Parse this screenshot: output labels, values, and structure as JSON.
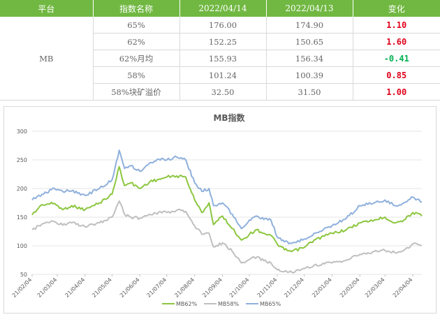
{
  "table": {
    "headers": [
      "平台",
      "指数名称",
      "2022/04/14",
      "2022/04/13",
      "变化"
    ],
    "platform": "MB",
    "rows": [
      {
        "name": "65%",
        "d1": "176.00",
        "d2": "174.90",
        "change": "1.10",
        "dir": "up"
      },
      {
        "name": "62%",
        "d1": "152.25",
        "d2": "150.65",
        "change": "1.60",
        "dir": "up"
      },
      {
        "name": "62%月均",
        "d1": "155.93",
        "d2": "156.34",
        "change": "-0.41",
        "dir": "down"
      },
      {
        "name": "58%",
        "d1": "101.24",
        "d2": "100.39",
        "change": "0.85",
        "dir": "up"
      },
      {
        "name": "58%块矿溢价",
        "d1": "32.50",
        "d2": "31.50",
        "change": "1.00",
        "dir": "up"
      }
    ],
    "colors": {
      "header_bg": "#71b842",
      "up": "#e0001a",
      "down": "#00b050"
    }
  },
  "chart_data": {
    "type": "line",
    "title": "MB指数",
    "ylim": [
      50,
      300
    ],
    "yticks": [
      50,
      100,
      150,
      200,
      250,
      300
    ],
    "xticks": [
      "21/02/04",
      "21/03/04",
      "21/04/04",
      "21/05/04",
      "21/06/04",
      "21/07/04",
      "21/08/04",
      "21/09/04",
      "21/10/04",
      "21/11/04",
      "21/12/04",
      "22/01/04",
      "22/02/04",
      "22/03/04",
      "22/04/04"
    ],
    "x_start": "2021-02-04",
    "x_end": "2022-04-14",
    "grid": true,
    "legend_position": "bottom",
    "series": [
      {
        "name": "MB62%",
        "color": "#8cc63f",
        "points": [
          [
            "2021-02-04",
            154
          ],
          [
            "2021-02-15",
            172
          ],
          [
            "2021-03-01",
            174
          ],
          [
            "2021-03-10",
            163
          ],
          [
            "2021-03-20",
            170
          ],
          [
            "2021-04-04",
            163
          ],
          [
            "2021-04-20",
            175
          ],
          [
            "2021-05-04",
            190
          ],
          [
            "2021-05-12",
            238
          ],
          [
            "2021-05-18",
            205
          ],
          [
            "2021-05-25",
            210
          ],
          [
            "2021-06-04",
            200
          ],
          [
            "2021-06-15",
            212
          ],
          [
            "2021-06-30",
            218
          ],
          [
            "2021-07-04",
            220
          ],
          [
            "2021-07-15",
            222
          ],
          [
            "2021-07-25",
            220
          ],
          [
            "2021-08-04",
            180
          ],
          [
            "2021-08-12",
            158
          ],
          [
            "2021-08-20",
            175
          ],
          [
            "2021-08-25",
            137
          ],
          [
            "2021-09-04",
            152
          ],
          [
            "2021-09-15",
            130
          ],
          [
            "2021-09-25",
            110
          ],
          [
            "2021-10-04",
            120
          ],
          [
            "2021-10-12",
            128
          ],
          [
            "2021-10-20",
            122
          ],
          [
            "2021-10-28",
            118
          ],
          [
            "2021-11-04",
            103
          ],
          [
            "2021-11-12",
            93
          ],
          [
            "2021-11-20",
            90
          ],
          [
            "2021-12-04",
            97
          ],
          [
            "2021-12-15",
            110
          ],
          [
            "2022-01-04",
            122
          ],
          [
            "2022-01-20",
            128
          ],
          [
            "2022-02-04",
            140
          ],
          [
            "2022-02-20",
            145
          ],
          [
            "2022-03-04",
            150
          ],
          [
            "2022-03-15",
            140
          ],
          [
            "2022-03-25",
            145
          ],
          [
            "2022-04-04",
            158
          ],
          [
            "2022-04-14",
            152
          ]
        ]
      },
      {
        "name": "MB58%",
        "color": "#bfbfbf",
        "points": [
          [
            "2021-02-04",
            128
          ],
          [
            "2021-02-15",
            138
          ],
          [
            "2021-03-01",
            142
          ],
          [
            "2021-03-10",
            136
          ],
          [
            "2021-03-20",
            140
          ],
          [
            "2021-04-04",
            133
          ],
          [
            "2021-04-20",
            140
          ],
          [
            "2021-05-04",
            150
          ],
          [
            "2021-05-12",
            178
          ],
          [
            "2021-05-18",
            155
          ],
          [
            "2021-05-25",
            150
          ],
          [
            "2021-06-04",
            148
          ],
          [
            "2021-06-15",
            155
          ],
          [
            "2021-06-30",
            160
          ],
          [
            "2021-07-04",
            158
          ],
          [
            "2021-07-15",
            162
          ],
          [
            "2021-07-25",
            160
          ],
          [
            "2021-08-04",
            135
          ],
          [
            "2021-08-12",
            120
          ],
          [
            "2021-08-20",
            122
          ],
          [
            "2021-08-25",
            98
          ],
          [
            "2021-09-04",
            105
          ],
          [
            "2021-09-15",
            90
          ],
          [
            "2021-09-25",
            70
          ],
          [
            "2021-10-04",
            76
          ],
          [
            "2021-10-12",
            80
          ],
          [
            "2021-10-20",
            74
          ],
          [
            "2021-10-28",
            70
          ],
          [
            "2021-11-04",
            58
          ],
          [
            "2021-11-12",
            55
          ],
          [
            "2021-11-20",
            54
          ],
          [
            "2021-12-04",
            60
          ],
          [
            "2021-12-15",
            66
          ],
          [
            "2022-01-04",
            70
          ],
          [
            "2022-01-20",
            75
          ],
          [
            "2022-02-04",
            85
          ],
          [
            "2022-02-20",
            90
          ],
          [
            "2022-03-04",
            92
          ],
          [
            "2022-03-15",
            88
          ],
          [
            "2022-03-25",
            92
          ],
          [
            "2022-04-04",
            103
          ],
          [
            "2022-04-14",
            101
          ]
        ]
      },
      {
        "name": "MB65%",
        "color": "#8fb0dc",
        "points": [
          [
            "2021-02-04",
            180
          ],
          [
            "2021-02-15",
            190
          ],
          [
            "2021-03-01",
            200
          ],
          [
            "2021-03-10",
            195
          ],
          [
            "2021-03-20",
            196
          ],
          [
            "2021-04-04",
            188
          ],
          [
            "2021-04-20",
            200
          ],
          [
            "2021-05-04",
            215
          ],
          [
            "2021-05-12",
            267
          ],
          [
            "2021-05-18",
            235
          ],
          [
            "2021-05-25",
            240
          ],
          [
            "2021-06-04",
            230
          ],
          [
            "2021-06-15",
            245
          ],
          [
            "2021-06-30",
            252
          ],
          [
            "2021-07-04",
            250
          ],
          [
            "2021-07-15",
            255
          ],
          [
            "2021-07-25",
            250
          ],
          [
            "2021-08-04",
            210
          ],
          [
            "2021-08-12",
            195
          ],
          [
            "2021-08-20",
            200
          ],
          [
            "2021-08-25",
            170
          ],
          [
            "2021-09-04",
            175
          ],
          [
            "2021-09-15",
            155
          ],
          [
            "2021-09-25",
            130
          ],
          [
            "2021-10-04",
            145
          ],
          [
            "2021-10-12",
            152
          ],
          [
            "2021-10-20",
            146
          ],
          [
            "2021-10-28",
            145
          ],
          [
            "2021-11-04",
            115
          ],
          [
            "2021-11-12",
            107
          ],
          [
            "2021-11-20",
            104
          ],
          [
            "2021-12-04",
            112
          ],
          [
            "2021-12-15",
            122
          ],
          [
            "2022-01-04",
            135
          ],
          [
            "2022-01-20",
            148
          ],
          [
            "2022-02-04",
            170
          ],
          [
            "2022-02-20",
            175
          ],
          [
            "2022-03-04",
            180
          ],
          [
            "2022-03-15",
            170
          ],
          [
            "2022-03-25",
            175
          ],
          [
            "2022-04-04",
            185
          ],
          [
            "2022-04-14",
            176
          ]
        ]
      }
    ]
  }
}
